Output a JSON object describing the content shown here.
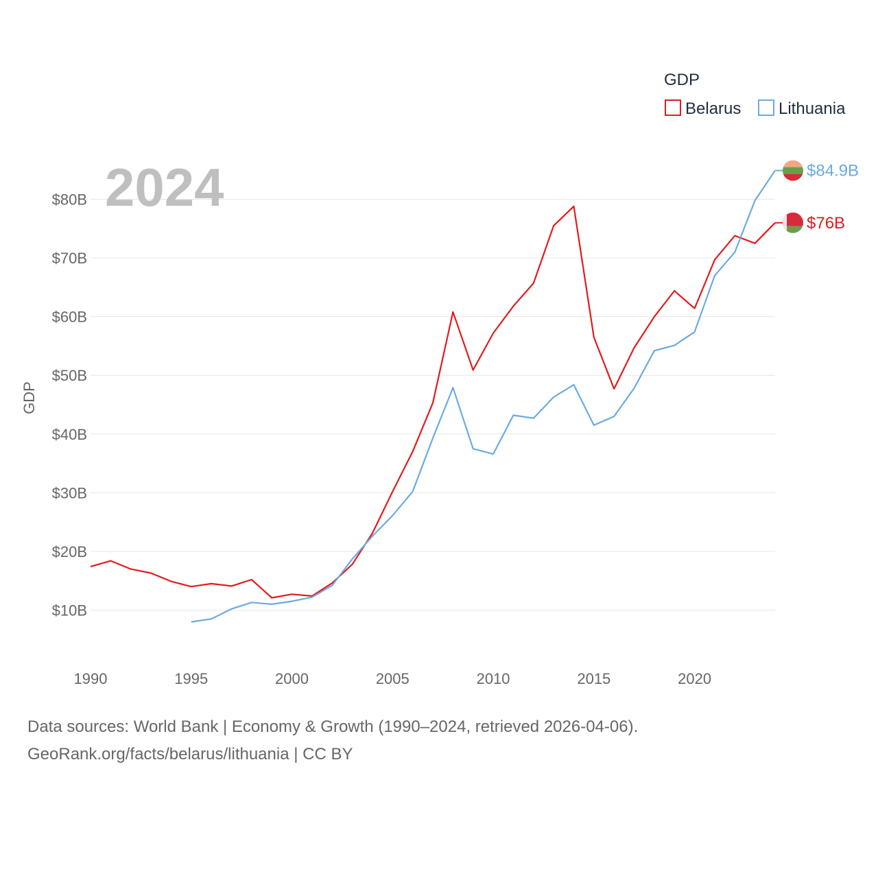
{
  "chart_data": {
    "type": "line",
    "title": "GDP",
    "ylabel": "GDP",
    "xlabel": "",
    "highlight_year": "2024",
    "xlim": [
      1990,
      2024
    ],
    "ylim": [
      0,
      90
    ],
    "x_ticks": [
      1990,
      1995,
      2000,
      2005,
      2010,
      2015,
      2020
    ],
    "y_ticks": [
      10,
      20,
      30,
      40,
      50,
      60,
      70,
      80
    ],
    "y_tick_labels": [
      "$10B",
      "$20B",
      "$30B",
      "$40B",
      "$50B",
      "$60B",
      "$70B",
      "$80B"
    ],
    "grid": true,
    "legend_title": "GDP",
    "legend_position": "top-right",
    "series": [
      {
        "name": "Belarus",
        "color": "#e31a1c",
        "end_label": "$76B",
        "flag": "belarus-flag",
        "x": [
          1990,
          1991,
          1992,
          1993,
          1994,
          1995,
          1996,
          1997,
          1998,
          1999,
          2000,
          2001,
          2002,
          2003,
          2004,
          2005,
          2006,
          2007,
          2008,
          2009,
          2010,
          2011,
          2012,
          2013,
          2014,
          2015,
          2016,
          2017,
          2018,
          2019,
          2020,
          2021,
          2022,
          2023,
          2024
        ],
        "values": [
          17.4,
          18.4,
          17.0,
          16.3,
          14.9,
          14.0,
          14.5,
          14.1,
          15.2,
          12.1,
          12.7,
          12.4,
          14.6,
          17.8,
          23.1,
          30.2,
          37.0,
          45.3,
          60.8,
          50.9,
          57.2,
          61.8,
          65.7,
          75.5,
          78.8,
          56.5,
          47.7,
          54.7,
          60.0,
          64.4,
          61.4,
          69.7,
          73.8,
          72.5,
          76.0
        ]
      },
      {
        "name": "Lithuania",
        "color": "#6aaae4",
        "end_label": "$84.9B",
        "flag": "lithuania-flag",
        "x": [
          1995,
          1996,
          1997,
          1998,
          1999,
          2000,
          2001,
          2002,
          2003,
          2004,
          2005,
          2006,
          2007,
          2008,
          2009,
          2010,
          2011,
          2012,
          2013,
          2014,
          2015,
          2016,
          2017,
          2018,
          2019,
          2020,
          2021,
          2022,
          2023,
          2024
        ],
        "values": [
          8.0,
          8.5,
          10.2,
          11.3,
          11.0,
          11.5,
          12.2,
          14.2,
          18.7,
          22.6,
          26.1,
          30.2,
          39.3,
          47.9,
          37.5,
          36.6,
          43.2,
          42.7,
          46.3,
          48.4,
          41.5,
          43.0,
          47.8,
          54.2,
          55.1,
          57.4,
          67.0,
          71.0,
          79.8,
          84.9
        ]
      }
    ]
  },
  "footer": {
    "line1": "Data sources: World Bank | Economy & Growth (1990–2024, retrieved 2026-04-06).",
    "line2": "GeoRank.org/facts/belarus/lithuania | CC BY"
  }
}
